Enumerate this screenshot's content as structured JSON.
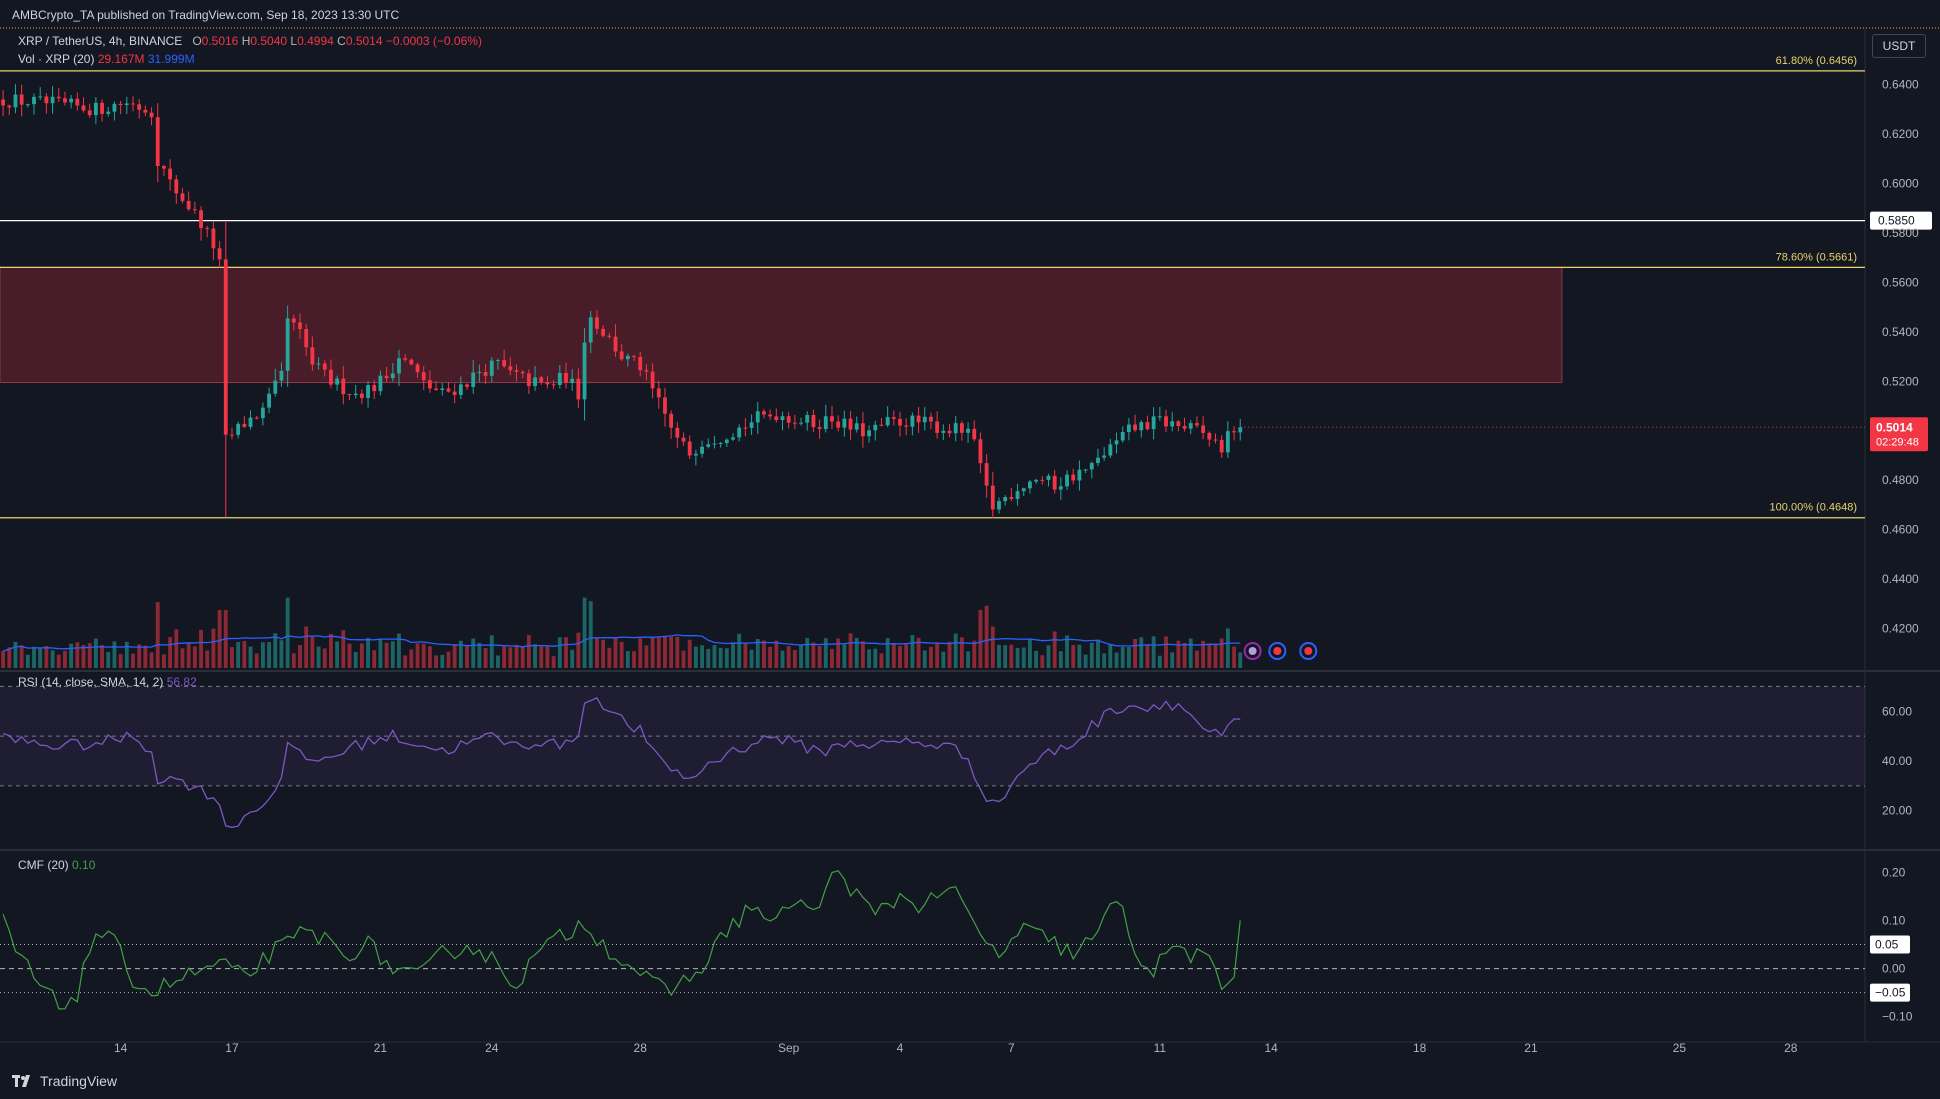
{
  "header": {
    "published_text": "AMBCrypto_TA published on TradingView.com, Sep 18, 2023 13:30 UTC",
    "symbol": "XRP / TetherUS, 4h, BINANCE",
    "ohlc": {
      "o_label": "O",
      "o": "0.5016",
      "h_label": "H",
      "h": "0.5040",
      "l_label": "L",
      "l": "0.4994",
      "c_label": "C",
      "c": "0.5014",
      "change": "−0.0003 (−0.06%)"
    },
    "volume": {
      "label": "Vol · XRP (20)",
      "value": "29.167M",
      "ma": "31.999M"
    },
    "currency": "USDT"
  },
  "brand": {
    "name": "TradingView"
  },
  "rsi_legend": {
    "label": "RSI (14, close, SMA, 14, 2)",
    "value": "56.82"
  },
  "cmf_legend": {
    "label": "CMF (20)",
    "value": "0.10"
  },
  "colors": {
    "background": "#131722",
    "up": "#26a69a",
    "down": "#f23645",
    "fib": "#e8d36a",
    "zone": "#5b1f2b",
    "rsi": "#7e57c2",
    "cmf": "#43a047",
    "vol_ma": "#2962ff"
  },
  "chart_data": [
    {
      "type": "candlestick",
      "title": "XRP / TetherUS, 4h, BINANCE",
      "ylim": [
        0.404,
        0.65
      ],
      "y_ticks": [
        "0.4200",
        "0.4400",
        "0.4600",
        "0.4800",
        "0.5000",
        "0.5200",
        "0.5400",
        "0.5600",
        "0.5800",
        "0.6000",
        "0.6200",
        "0.6400"
      ],
      "x_tick_labels": [
        {
          "label": "14",
          "x": 4
        },
        {
          "label": "17",
          "x": 22
        },
        {
          "label": "21",
          "x": 46
        },
        {
          "label": "24",
          "x": 64
        },
        {
          "label": "28",
          "x": 88
        },
        {
          "label": "Sep",
          "x": 112
        },
        {
          "label": "4",
          "x": 130
        },
        {
          "label": "7",
          "x": 148
        },
        {
          "label": "11",
          "x": 172
        },
        {
          "label": "14",
          "x": 190
        },
        {
          "label": "18",
          "x": 214
        },
        {
          "label": "21",
          "x": 232
        },
        {
          "label": "25",
          "x": 256
        },
        {
          "label": "28",
          "x": 274
        }
      ],
      "x_range": [
        -15.5,
        286
      ],
      "last_price": {
        "value": "0.5014",
        "countdown": "02:29:48"
      },
      "horizontal_levels": [
        {
          "label": "61.80% (0.6456)",
          "value": 0.6456,
          "color": "#e8d36a"
        },
        {
          "label": "0.5850",
          "value": 0.585,
          "color": "#ffffff",
          "axis_badge": true
        },
        {
          "label": "78.60% (0.5661)",
          "value": 0.5661,
          "color": "#e8d36a"
        },
        {
          "label": "100.00% (0.4648)",
          "value": 0.4648,
          "color": "#e8d36a"
        }
      ],
      "supply_zone": {
        "top": 0.5661,
        "bottom": 0.5195,
        "x_start": -15.5,
        "x_end": 237
      },
      "price_keypoints": [
        [
          -15,
          0.634
        ],
        [
          -6,
          0.632
        ],
        [
          0,
          0.63
        ],
        [
          5,
          0.633
        ],
        [
          9,
          0.629
        ],
        [
          10,
          0.61
        ],
        [
          12,
          0.6
        ],
        [
          15,
          0.591
        ],
        [
          17,
          0.584
        ],
        [
          19,
          0.575
        ],
        [
          20,
          0.567
        ],
        [
          20.5,
          0.51
        ],
        [
          21,
          0.496
        ],
        [
          24,
          0.503
        ],
        [
          27,
          0.508
        ],
        [
          30,
          0.522
        ],
        [
          31,
          0.545
        ],
        [
          33,
          0.539
        ],
        [
          35,
          0.527
        ],
        [
          38,
          0.52
        ],
        [
          42,
          0.515
        ],
        [
          45,
          0.518
        ],
        [
          47,
          0.522
        ],
        [
          49,
          0.53
        ],
        [
          51,
          0.526
        ],
        [
          53,
          0.519
        ],
        [
          56,
          0.515
        ],
        [
          59,
          0.518
        ],
        [
          62,
          0.524
        ],
        [
          65,
          0.527
        ],
        [
          67,
          0.523
        ],
        [
          70,
          0.52
        ],
        [
          73,
          0.518
        ],
        [
          76,
          0.522
        ],
        [
          78,
          0.515
        ],
        [
          79,
          0.538
        ],
        [
          80,
          0.546
        ],
        [
          83,
          0.537
        ],
        [
          85,
          0.53
        ],
        [
          88,
          0.526
        ],
        [
          90,
          0.516
        ],
        [
          92,
          0.506
        ],
        [
          94,
          0.496
        ],
        [
          96,
          0.491
        ],
        [
          98,
          0.496
        ],
        [
          101,
          0.498
        ],
        [
          104,
          0.501
        ],
        [
          107,
          0.505
        ],
        [
          110,
          0.507
        ],
        [
          113,
          0.505
        ],
        [
          116,
          0.503
        ],
        [
          119,
          0.505
        ],
        [
          122,
          0.501
        ],
        [
          125,
          0.499
        ],
        [
          128,
          0.503
        ],
        [
          131,
          0.504
        ],
        [
          134,
          0.503
        ],
        [
          137,
          0.501
        ],
        [
          140,
          0.5
        ],
        [
          142,
          0.496
        ],
        [
          143,
          0.484
        ],
        [
          144,
          0.476
        ],
        [
          145,
          0.469
        ],
        [
          147,
          0.473
        ],
        [
          149,
          0.477
        ],
        [
          152,
          0.481
        ],
        [
          155,
          0.478
        ],
        [
          158,
          0.482
        ],
        [
          161,
          0.485
        ],
        [
          163,
          0.491
        ],
        [
          165,
          0.495
        ],
        [
          167,
          0.5
        ],
        [
          169,
          0.502
        ],
        [
          172,
          0.504
        ],
        [
          175,
          0.502
        ],
        [
          178,
          0.5
        ],
        [
          180,
          0.497
        ],
        [
          182,
          0.493
        ],
        [
          184,
          0.501
        ],
        [
          185,
          0.5014
        ]
      ],
      "price_axis_badges": [
        "0.5850",
        "0.5014",
        "02:29:48"
      ]
    },
    {
      "type": "bar",
      "title": "Vol · XRP (20)",
      "series": [
        {
          "name": "Vol",
          "unit": "M"
        },
        {
          "name": "MA(20)",
          "value": "31.999M"
        }
      ]
    },
    {
      "type": "line",
      "title": "RSI (14, close, SMA, 14, 2)",
      "ylim": [
        5,
        75
      ],
      "y_ticks": [
        "20.00",
        "40.00",
        "60.00"
      ],
      "bands": {
        "upper": 70,
        "middle": 50,
        "lower": 30
      },
      "keypoints": [
        [
          -15,
          49
        ],
        [
          -6,
          46
        ],
        [
          0,
          47
        ],
        [
          6,
          50
        ],
        [
          9,
          44
        ],
        [
          10,
          33
        ],
        [
          14,
          32
        ],
        [
          18,
          27
        ],
        [
          20,
          24
        ],
        [
          21,
          12
        ],
        [
          24,
          18
        ],
        [
          27,
          22
        ],
        [
          30,
          34
        ],
        [
          31,
          46
        ],
        [
          33,
          42
        ],
        [
          36,
          40
        ],
        [
          40,
          44
        ],
        [
          44,
          48
        ],
        [
          48,
          50
        ],
        [
          52,
          47
        ],
        [
          56,
          44
        ],
        [
          60,
          47
        ],
        [
          64,
          50
        ],
        [
          68,
          46
        ],
        [
          72,
          48
        ],
        [
          76,
          46
        ],
        [
          78,
          52
        ],
        [
          79,
          63
        ],
        [
          81,
          66
        ],
        [
          84,
          58
        ],
        [
          88,
          52
        ],
        [
          91,
          40
        ],
        [
          94,
          36
        ],
        [
          96,
          32
        ],
        [
          99,
          39
        ],
        [
          103,
          44
        ],
        [
          107,
          48
        ],
        [
          110,
          50
        ],
        [
          114,
          46
        ],
        [
          118,
          44
        ],
        [
          122,
          48
        ],
        [
          126,
          46
        ],
        [
          130,
          48
        ],
        [
          134,
          47
        ],
        [
          138,
          46
        ],
        [
          141,
          41
        ],
        [
          143,
          30
        ],
        [
          145,
          22
        ],
        [
          147,
          27
        ],
        [
          150,
          37
        ],
        [
          154,
          43
        ],
        [
          158,
          47
        ],
        [
          161,
          54
        ],
        [
          164,
          60
        ],
        [
          167,
          63
        ],
        [
          170,
          61
        ],
        [
          173,
          64
        ],
        [
          176,
          61
        ],
        [
          178,
          56
        ],
        [
          180,
          51
        ],
        [
          182,
          50
        ],
        [
          184,
          55
        ],
        [
          185,
          56.82
        ]
      ]
    },
    {
      "type": "line",
      "title": "CMF (20)",
      "ylim": [
        -0.14,
        0.24
      ],
      "y_ticks": [
        "0.20",
        "0.10",
        "0.00",
        "−0.10"
      ],
      "levels": [
        {
          "value": 0.05,
          "label": "0.05"
        },
        {
          "value": 0,
          "label": "0.00"
        },
        {
          "value": -0.05,
          "label": "−0.05"
        }
      ],
      "keypoints": [
        [
          -15,
          0.1
        ],
        [
          -13,
          0.04
        ],
        [
          -10,
          -0.02
        ],
        [
          -6,
          -0.08
        ],
        [
          -3,
          -0.05
        ],
        [
          0,
          0.08
        ],
        [
          3,
          0.05
        ],
        [
          6,
          -0.02
        ],
        [
          9,
          -0.05
        ],
        [
          12,
          -0.03
        ],
        [
          16,
          -0.01
        ],
        [
          20,
          0.01
        ],
        [
          24,
          -0.02
        ],
        [
          28,
          0.03
        ],
        [
          31,
          0.05
        ],
        [
          34,
          0.08
        ],
        [
          37,
          0.06
        ],
        [
          40,
          0.03
        ],
        [
          44,
          0.05
        ],
        [
          48,
          0.0
        ],
        [
          52,
          -0.02
        ],
        [
          56,
          0.03
        ],
        [
          60,
          0.05
        ],
        [
          64,
          0.02
        ],
        [
          68,
          -0.03
        ],
        [
          72,
          0.04
        ],
        [
          76,
          0.07
        ],
        [
          79,
          0.1
        ],
        [
          82,
          0.05
        ],
        [
          85,
          0.02
        ],
        [
          88,
          -0.01
        ],
        [
          92,
          -0.05
        ],
        [
          96,
          -0.02
        ],
        [
          99,
          0.02
        ],
        [
          102,
          0.08
        ],
        [
          106,
          0.13
        ],
        [
          110,
          0.09
        ],
        [
          113,
          0.15
        ],
        [
          116,
          0.11
        ],
        [
          120,
          0.21
        ],
        [
          123,
          0.15
        ],
        [
          126,
          0.11
        ],
        [
          130,
          0.15
        ],
        [
          134,
          0.13
        ],
        [
          137,
          0.17
        ],
        [
          140,
          0.14
        ],
        [
          143,
          0.06
        ],
        [
          146,
          0.03
        ],
        [
          150,
          0.08
        ],
        [
          154,
          0.06
        ],
        [
          158,
          0.03
        ],
        [
          162,
          0.07
        ],
        [
          165,
          0.15
        ],
        [
          168,
          0.04
        ],
        [
          171,
          -0.01
        ],
        [
          174,
          0.05
        ],
        [
          177,
          0.03
        ],
        [
          180,
          0.01
        ],
        [
          182,
          -0.04
        ],
        [
          184,
          -0.01
        ],
        [
          185,
          0.1
        ]
      ]
    }
  ]
}
